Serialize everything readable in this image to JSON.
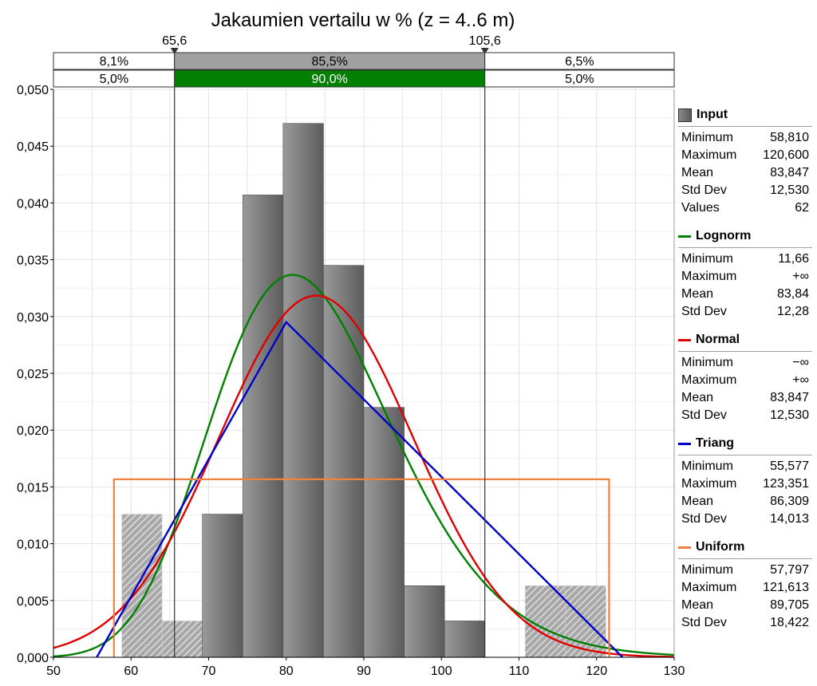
{
  "chart_data": {
    "type": "histogram",
    "title": "Jakaumien vertailu w % (z = 4..6 m)",
    "xlim": [
      50,
      130
    ],
    "ylim": [
      0,
      0.05
    ],
    "x_ticks": [
      50,
      60,
      70,
      80,
      90,
      100,
      110,
      120,
      130
    ],
    "y_ticks": [
      0,
      0.005,
      0.01,
      0.015,
      0.02,
      0.025,
      0.03,
      0.035,
      0.04,
      0.045,
      0.05
    ],
    "x_tick_labels": [
      "50",
      "60",
      "70",
      "80",
      "90",
      "100",
      "110",
      "120",
      "130"
    ],
    "y_tick_labels": [
      "0,000",
      "0,005",
      "0,010",
      "0,015",
      "0,020",
      "0,025",
      "0,030",
      "0,035",
      "0,040",
      "0,045",
      "0,050"
    ],
    "grid": true,
    "delimiters": {
      "left": 65.6,
      "right": 105.6,
      "left_label": "65,6",
      "right_label": "105,6",
      "row1": {
        "left": "8,1%",
        "middle": "85,5%",
        "right": "6,5%",
        "middle_color": "#a0a0a0"
      },
      "row2": {
        "left": "5,0%",
        "middle": "90,0%",
        "right": "5,0%",
        "middle_color": "#008000"
      }
    },
    "histogram": {
      "series_name": "Input",
      "bins": [
        {
          "x0": 58.81,
          "x1": 64.0,
          "value": 0.0126
        },
        {
          "x0": 64.0,
          "x1": 69.2,
          "value": 0.0032
        },
        {
          "x0": 69.2,
          "x1": 74.4,
          "value": 0.0126
        },
        {
          "x0": 74.4,
          "x1": 79.6,
          "value": 0.0407
        },
        {
          "x0": 79.6,
          "x1": 84.8,
          "value": 0.047
        },
        {
          "x0": 84.8,
          "x1": 90.0,
          "value": 0.0345
        },
        {
          "x0": 90.0,
          "x1": 95.2,
          "value": 0.022
        },
        {
          "x0": 95.2,
          "x1": 100.4,
          "value": 0.0063
        },
        {
          "x0": 100.4,
          "x1": 105.6,
          "value": 0.0032
        },
        {
          "x0": 105.6,
          "x1": 110.8,
          "value": 0.0
        },
        {
          "x0": 110.8,
          "x1": 116.0,
          "value": 0.0063
        },
        {
          "x0": 116.0,
          "x1": 121.2,
          "value": 0.0063
        }
      ]
    },
    "series": [
      {
        "name": "Lognorm",
        "color": "#008000",
        "kind": "lognormal",
        "mean": 83.84,
        "sd": 12.28,
        "shift": 11.66
      },
      {
        "name": "Normal",
        "color": "#e00000",
        "kind": "normal",
        "mean": 83.847,
        "sd": 12.53
      },
      {
        "name": "Triang",
        "color": "#0000cc",
        "kind": "triangular",
        "min": 55.577,
        "mode": 79.999,
        "max": 123.351
      },
      {
        "name": "Uniform",
        "color": "#f08040",
        "kind": "uniform",
        "min": 57.797,
        "max": 121.613
      }
    ]
  },
  "legend": [
    {
      "name": "Input",
      "swatch": "box",
      "color": "#707070",
      "stats": [
        [
          "Minimum",
          "58,810"
        ],
        [
          "Maximum",
          "120,600"
        ],
        [
          "Mean",
          "83,847"
        ],
        [
          "Std Dev",
          "12,530"
        ],
        [
          "Values",
          "62"
        ]
      ]
    },
    {
      "name": "Lognorm",
      "swatch": "line",
      "color": "#008000",
      "stats": [
        [
          "Minimum",
          "11,66"
        ],
        [
          "Maximum",
          "+∞"
        ],
        [
          "Mean",
          "83,84"
        ],
        [
          "Std Dev",
          "12,28"
        ]
      ]
    },
    {
      "name": "Normal",
      "swatch": "line",
      "color": "#e00000",
      "stats": [
        [
          "Minimum",
          "−∞"
        ],
        [
          "Maximum",
          "+∞"
        ],
        [
          "Mean",
          "83,847"
        ],
        [
          "Std Dev",
          "12,530"
        ]
      ]
    },
    {
      "name": "Triang",
      "swatch": "line",
      "color": "#0000cc",
      "stats": [
        [
          "Minimum",
          "55,577"
        ],
        [
          "Maximum",
          "123,351"
        ],
        [
          "Mean",
          "86,309"
        ],
        [
          "Std Dev",
          "14,013"
        ]
      ]
    },
    {
      "name": "Uniform",
      "swatch": "line",
      "color": "#f08040",
      "stats": [
        [
          "Minimum",
          "57,797"
        ],
        [
          "Maximum",
          "121,613"
        ],
        [
          "Mean",
          "89,705"
        ],
        [
          "Std Dev",
          "18,422"
        ]
      ]
    }
  ]
}
